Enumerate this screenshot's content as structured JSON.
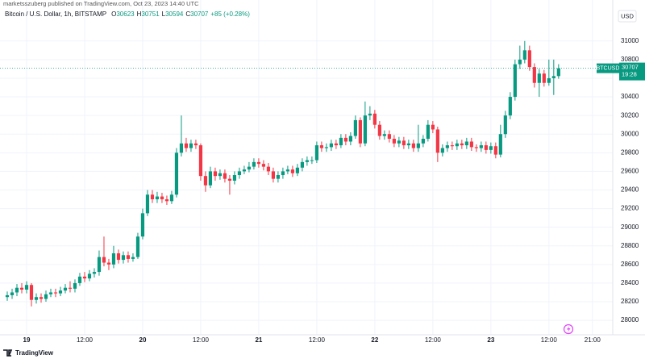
{
  "header": {
    "publisher": "marketsszuberg published on TradingView.com, Oct 23, 2023 14:40 UTC",
    "currency": "USD",
    "logo": "TradingView"
  },
  "chart_data": {
    "type": "candlestick",
    "title": "Bitcoin / U.S. Dollar, 1h, BITSTAMP",
    "ohlc_letters": [
      "O",
      "H",
      "L",
      "C"
    ],
    "change_label": "+85 (+0.28%)",
    "symbol": "BTCUSD",
    "countdown": "19:28",
    "up_color": "#089981",
    "down_color": "#f23645",
    "grid": true,
    "xlim": [
      -5.5,
      121.2
    ],
    "ylim": [
      27845,
      31440
    ],
    "xticks": [
      {
        "value": 0,
        "label": "19"
      },
      {
        "value": 12,
        "label": "12:00"
      },
      {
        "value": 24,
        "label": "20"
      },
      {
        "value": 36,
        "label": "12:00"
      },
      {
        "value": 48,
        "label": "21"
      },
      {
        "value": 60,
        "label": "12:00"
      },
      {
        "value": 72,
        "label": "22"
      },
      {
        "value": 84,
        "label": "12:00"
      },
      {
        "value": 96,
        "label": "23"
      },
      {
        "value": 108,
        "label": "12:00"
      },
      {
        "value": 117,
        "label": "21:00"
      }
    ],
    "yticks": [
      28000,
      28200,
      28400,
      28600,
      28800,
      29000,
      29200,
      29400,
      29600,
      29800,
      30000,
      30200,
      30400,
      30600,
      30800,
      31000
    ],
    "x": [
      -4,
      -3,
      -2,
      -1,
      0,
      1,
      2,
      3,
      4,
      5,
      6,
      7,
      8,
      9,
      10,
      11,
      12,
      13,
      14,
      15,
      16,
      17,
      18,
      19,
      20,
      21,
      22,
      23,
      24,
      25,
      26,
      27,
      28,
      29,
      30,
      31,
      32,
      33,
      34,
      35,
      36,
      37,
      38,
      39,
      40,
      41,
      42,
      43,
      44,
      45,
      46,
      47,
      48,
      49,
      50,
      51,
      52,
      53,
      54,
      55,
      56,
      57,
      58,
      59,
      60,
      61,
      62,
      63,
      64,
      65,
      66,
      67,
      68,
      69,
      70,
      71,
      72,
      73,
      74,
      75,
      76,
      77,
      78,
      79,
      80,
      81,
      82,
      83,
      84,
      85,
      86,
      87,
      88,
      89,
      90,
      91,
      92,
      93,
      94,
      95,
      96,
      97,
      98,
      99,
      100,
      101,
      102,
      103,
      104,
      105,
      106,
      107,
      108,
      109,
      110
    ],
    "series": {
      "open": [
        28250,
        28270,
        28300,
        28350,
        28330,
        28380,
        28220,
        28250,
        28230,
        28280,
        28300,
        28290,
        28320,
        28350,
        28340,
        28400,
        28470,
        28450,
        28500,
        28520,
        28680,
        28620,
        28600,
        28720,
        28650,
        28700,
        28660,
        28680,
        28900,
        29150,
        29350,
        29300,
        29330,
        29300,
        29280,
        29350,
        29800,
        29900,
        29850,
        29900,
        29880,
        29550,
        29450,
        29600,
        29550,
        29580,
        29520,
        29500,
        29560,
        29600,
        29620,
        29650,
        29700,
        29680,
        29650,
        29600,
        29520,
        29560,
        29600,
        29620,
        29580,
        29640,
        29700,
        29720,
        29720,
        29880,
        29850,
        29860,
        29900,
        29880,
        29960,
        29920,
        29980,
        30150,
        29900,
        30200,
        30220,
        30100,
        29980,
        30000,
        29950,
        29900,
        29930,
        29880,
        29900,
        29850,
        29900,
        29950,
        30100,
        30050,
        29800,
        29850,
        29880,
        29870,
        29900,
        29880,
        29920,
        29860,
        29850,
        29880,
        29830,
        29870,
        29780,
        30000,
        30200,
        30400,
        30750,
        30800,
        30900,
        30720,
        30550,
        30650,
        30550,
        30600,
        30623
      ],
      "high": [
        28310,
        28340,
        28390,
        28400,
        28420,
        28400,
        28290,
        28290,
        28320,
        28340,
        28340,
        28360,
        28390,
        28420,
        28440,
        28510,
        28520,
        28540,
        28560,
        28750,
        28900,
        28660,
        28800,
        28760,
        28740,
        28740,
        28720,
        28940,
        29200,
        29400,
        29400,
        29380,
        29370,
        29340,
        29390,
        29850,
        30200,
        29960,
        29940,
        29940,
        29900,
        29600,
        29650,
        29640,
        29620,
        29620,
        29560,
        29600,
        29640,
        29660,
        29700,
        29740,
        29740,
        29720,
        29690,
        29640,
        29600,
        29640,
        29660,
        29660,
        29680,
        29740,
        29760,
        29760,
        29920,
        29920,
        29900,
        29940,
        29940,
        30000,
        30000,
        30020,
        30200,
        30180,
        30350,
        30300,
        30260,
        30140,
        30040,
        30040,
        29990,
        29970,
        29970,
        29940,
        29940,
        30100,
        29990,
        30150,
        30140,
        30080,
        29890,
        29920,
        29920,
        29940,
        29940,
        29960,
        29960,
        29890,
        29920,
        29920,
        29910,
        29910,
        30100,
        30250,
        30450,
        30800,
        30950,
        31000,
        30950,
        30760,
        30700,
        30690,
        30800,
        30800,
        30751
      ],
      "low": [
        28210,
        28230,
        28260,
        28290,
        28290,
        28150,
        28180,
        28190,
        28200,
        28250,
        28250,
        28260,
        28290,
        28300,
        28300,
        28370,
        28410,
        28420,
        28460,
        28480,
        28580,
        28540,
        28560,
        28610,
        28610,
        28620,
        28630,
        28660,
        28870,
        29120,
        29260,
        29260,
        29260,
        29240,
        29250,
        29320,
        29760,
        29810,
        29810,
        29840,
        29500,
        29380,
        29420,
        29500,
        29510,
        29480,
        29350,
        29460,
        29520,
        29570,
        29590,
        29620,
        29640,
        29610,
        29560,
        29480,
        29480,
        29520,
        29570,
        29540,
        29550,
        29600,
        29660,
        29680,
        29690,
        29810,
        29810,
        29820,
        29840,
        29850,
        29880,
        29880,
        29950,
        29860,
        29870,
        30150,
        30060,
        29940,
        29940,
        29910,
        29860,
        29860,
        29840,
        29840,
        29810,
        29810,
        29860,
        29920,
        30010,
        29700,
        29760,
        29810,
        29830,
        29830,
        29840,
        29840,
        29820,
        29810,
        29810,
        29790,
        29790,
        29740,
        29750,
        29960,
        30160,
        30360,
        30700,
        30760,
        30680,
        30500,
        30400,
        30510,
        30520,
        30420,
        30594
      ],
      "close": [
        28270,
        28300,
        28350,
        28330,
        28380,
        28220,
        28250,
        28230,
        28280,
        28300,
        28290,
        28320,
        28350,
        28340,
        28400,
        28470,
        28450,
        28500,
        28520,
        28680,
        28620,
        28600,
        28720,
        28650,
        28700,
        28660,
        28680,
        28900,
        29150,
        29350,
        29300,
        29330,
        29300,
        29280,
        29350,
        29800,
        29900,
        29850,
        29900,
        29880,
        29550,
        29450,
        29600,
        29550,
        29580,
        29520,
        29500,
        29560,
        29600,
        29620,
        29650,
        29700,
        29680,
        29650,
        29600,
        29520,
        29560,
        29600,
        29620,
        29580,
        29640,
        29700,
        29720,
        29720,
        29880,
        29850,
        29860,
        29900,
        29880,
        29960,
        29920,
        29980,
        30150,
        29900,
        30200,
        30220,
        30100,
        29980,
        30000,
        29950,
        29900,
        29930,
        29880,
        29900,
        29850,
        29900,
        29950,
        30100,
        30050,
        29800,
        29850,
        29880,
        29870,
        29900,
        29880,
        29920,
        29860,
        29850,
        29880,
        29830,
        29870,
        29780,
        30000,
        30200,
        30400,
        30750,
        30800,
        30900,
        30720,
        30550,
        30650,
        30550,
        30600,
        30623,
        30707
      ]
    }
  }
}
